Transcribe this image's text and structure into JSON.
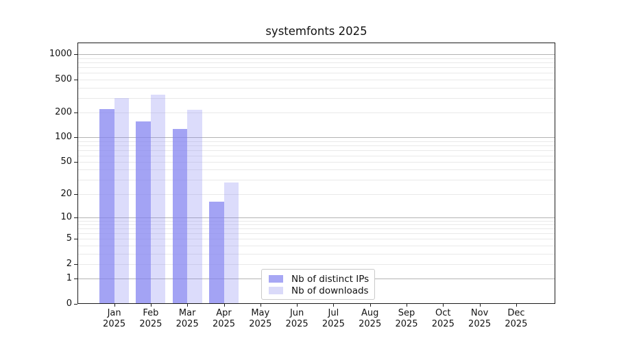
{
  "figure": {
    "background": "#ffffff"
  },
  "chart_data": {
    "type": "bar",
    "title": "systemfonts 2025",
    "scale": "log1p",
    "grid": "horizontal",
    "xlabel": "",
    "ylabel": "",
    "categories": [
      "Jan",
      "Feb",
      "Mar",
      "Apr",
      "May",
      "Jun",
      "Jul",
      "Aug",
      "Sep",
      "Oct",
      "Nov",
      "Dec"
    ],
    "category_year": "2025",
    "yticks": [
      0,
      1,
      2,
      5,
      10,
      20,
      50,
      100,
      200,
      500,
      1000
    ],
    "ylim": [
      0,
      1400
    ],
    "legend_position": "lower center",
    "series": [
      {
        "name": "Nb of distinct IPs",
        "color": "#a7a7f4",
        "values": [
          218,
          155,
          125,
          16,
          0,
          0,
          0,
          0,
          0,
          0,
          0,
          0
        ]
      },
      {
        "name": "Nb of downloads",
        "color": "#dadaf9",
        "values": [
          300,
          325,
          217,
          28,
          0,
          0,
          0,
          0,
          0,
          0,
          0,
          0
        ]
      }
    ],
    "colors": {
      "grid_major": "#b3b3b3",
      "grid_minor": "#e9e9e9",
      "axis": "#1a1a1a",
      "series_base": "#8080f0"
    }
  }
}
